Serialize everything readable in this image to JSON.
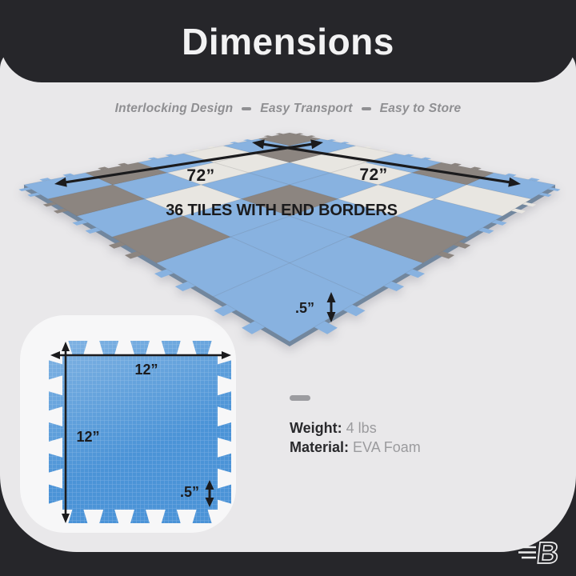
{
  "header": {
    "title": "Dimensions"
  },
  "tagline": {
    "items": [
      "Interlocking Design",
      "Easy Transport",
      "Easy to Store"
    ]
  },
  "mat": {
    "label_left": "72”",
    "label_right": "72”",
    "caption": "36 TILES WITH END BORDERS",
    "thickness_label": ".5”",
    "colors": {
      "blue": "#88b2e0",
      "white": "#e8e6e1",
      "gray": "#8c8580",
      "edge": "#72879e"
    },
    "grid": [
      [
        "G",
        "B",
        "W",
        "B",
        "G",
        "B"
      ],
      [
        "B",
        "G",
        "W",
        "W",
        "B",
        "W"
      ],
      [
        "W",
        "W",
        "B",
        "B",
        "W",
        "B"
      ],
      [
        "B",
        "W",
        "B",
        "G",
        "B",
        "G"
      ],
      [
        "G",
        "B",
        "W",
        "B",
        "B",
        "B"
      ],
      [
        "B",
        "G",
        "B",
        "G",
        "B",
        "B"
      ]
    ]
  },
  "tile": {
    "width_label": "12”",
    "height_label": "12”",
    "thickness_label": ".5”",
    "color": "#4b93d7",
    "texture_line": "rgba(255,255,255,0.22)"
  },
  "specs": {
    "weight_label": "Weight:",
    "weight_value": "4 lbs",
    "material_label": "Material:",
    "material_value": "EVA Foam"
  },
  "logo": {
    "letter": "B"
  },
  "palette": {
    "background_dark": "#26262a",
    "panel": "#e9e8ea",
    "card": "#f7f7f8",
    "text_dark": "#1b1b1d",
    "text_gray": "#8f8f92",
    "arrow": "#1b1b1d"
  }
}
